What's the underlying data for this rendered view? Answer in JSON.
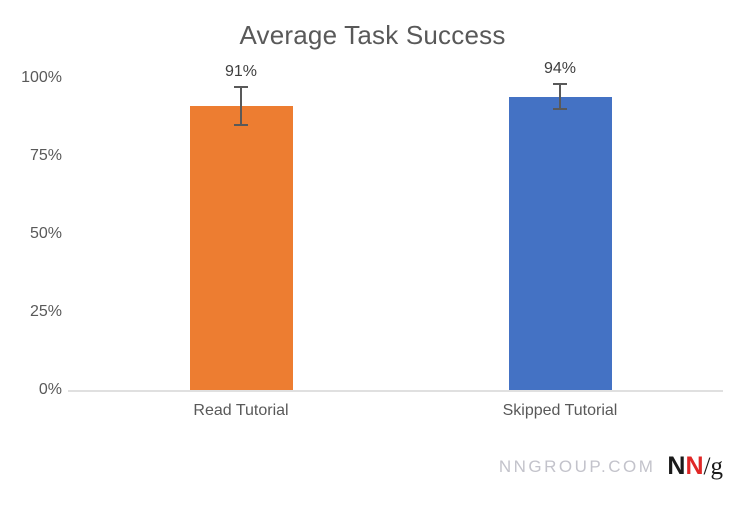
{
  "chart_data": {
    "type": "bar",
    "title": "Average Task Success",
    "categories": [
      "Read Tutorial",
      "Skipped Tutorial"
    ],
    "values": [
      91,
      94
    ],
    "value_labels": [
      "91%",
      "94%"
    ],
    "error_plus": [
      6,
      4
    ],
    "error_minus": [
      6,
      4
    ],
    "bar_colors": [
      "#ED7D31",
      "#4472C4"
    ],
    "xlabel": "",
    "ylabel": "",
    "ylim": [
      0,
      100
    ],
    "yticks": [
      0,
      25,
      50,
      75,
      100
    ],
    "ytick_labels": [
      "0%",
      "25%",
      "50%",
      "75%",
      "100%"
    ],
    "grid": false,
    "legend": "none"
  },
  "footer": {
    "site": "NNGROUP.COM",
    "logo": {
      "n1": "N",
      "n2": "N",
      "slash_g": "/g"
    }
  },
  "colors": {
    "title": "#595959",
    "axis_label": "#595959",
    "data_label": "#3F3F3F",
    "error_bar": "#595959",
    "axis_line": "#E0E0E0",
    "footer_text": "#C3C3CB",
    "logo_black": "#1A1A1A",
    "logo_red": "#E02726",
    "background": "#FFFFFF"
  }
}
